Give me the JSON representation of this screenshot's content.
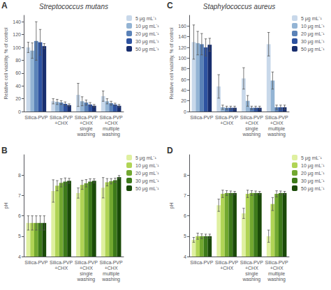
{
  "chart_data": [
    {
      "type": "bar",
      "title": "Streptococcus mutans",
      "ylabel": "Relative cell viability, % of control",
      "annotations": [
        "A"
      ],
      "categories": [
        "Silica-PVP",
        "Silica-PVP\n+CHX",
        "Silica-PVP\n+CHX\nsingle\nwashing",
        "Silica-PVP\n+CHX\nmultiple\nwashing"
      ],
      "ylim": [
        0,
        150
      ],
      "yticks": [
        0,
        20,
        40,
        60,
        80,
        100,
        120,
        140
      ],
      "grid": false,
      "legend": "upper right",
      "series": [
        {
          "name": "5 μg mL⁻¹",
          "color": "#c8d8ea",
          "values": [
            100,
            16,
            26,
            24
          ],
          "errors": [
            8,
            4,
            18,
            8
          ]
        },
        {
          "name": "10 μg mL⁻¹",
          "color": "#93b4d4",
          "values": [
            95,
            15,
            16,
            16
          ],
          "errors": [
            12,
            4,
            7,
            4
          ]
        },
        {
          "name": "20 μg mL⁻¹",
          "color": "#5a82b8",
          "values": [
            110,
            14,
            14,
            13
          ],
          "errors": [
            30,
            3,
            4,
            3
          ]
        },
        {
          "name": "30 μg mL⁻¹",
          "color": "#2d52a0",
          "values": [
            108,
            12,
            11,
            11
          ],
          "errors": [
            20,
            3,
            3,
            2
          ]
        },
        {
          "name": "50 μg mL⁻¹",
          "color": "#182e6e",
          "values": [
            102,
            10,
            9,
            9
          ],
          "errors": [
            4,
            2,
            2,
            2
          ]
        }
      ]
    },
    {
      "type": "bar",
      "title": "Staphylococcus aureus",
      "ylabel": "Relative cell viability, % of control",
      "annotations": [
        "C"
      ],
      "categories": [
        "Silica-PVP",
        "Silica-PVP\n+CHX",
        "Silica-PVP\n+CHX\nsingle\nwashing",
        "Silica-PVP\n+CHX\nmultiple\nwashing"
      ],
      "ylim": [
        0,
        180
      ],
      "yticks": [
        0,
        20,
        40,
        60,
        80,
        100,
        120,
        140,
        160
      ],
      "grid": false,
      "legend": "upper right",
      "series": [
        {
          "name": "5 μg mL⁻¹",
          "color": "#c8d8ea",
          "values": [
            130,
            47,
            62,
            126
          ],
          "errors": [
            32,
            22,
            20,
            22
          ]
        },
        {
          "name": "10 μg mL⁻¹",
          "color": "#93b4d4",
          "values": [
            128,
            8,
            20,
            58
          ],
          "errors": [
            22,
            4,
            10,
            16
          ]
        },
        {
          "name": "20 μg mL⁻¹",
          "color": "#5a82b8",
          "values": [
            126,
            7,
            7,
            8
          ],
          "errors": [
            20,
            3,
            3,
            4
          ]
        },
        {
          "name": "30 μg mL⁻¹",
          "color": "#2d52a0",
          "values": [
            120,
            7,
            7,
            8
          ],
          "errors": [
            16,
            3,
            3,
            4
          ]
        },
        {
          "name": "50 μg mL⁻¹",
          "color": "#182e6e",
          "values": [
            125,
            7,
            7,
            8
          ],
          "errors": [
            12,
            3,
            3,
            4
          ]
        }
      ]
    },
    {
      "type": "bar",
      "ylabel": "pH",
      "annotations": [
        "B"
      ],
      "categories": [
        "Silica-PVP",
        "Silica-PVP\n+CHX",
        "Silica-PVP\n+CHX\nsingle\nwashing",
        "Silica-PVP\n+CHX\nmultiple\nwashing"
      ],
      "ylim": [
        4,
        9
      ],
      "yticks": [
        4,
        5,
        6,
        7,
        8
      ],
      "grid": false,
      "legend": "upper right",
      "series": [
        {
          "name": "5 μg mL⁻¹",
          "color": "#dff0a0",
          "values": [
            5.65,
            7.22,
            7.12,
            7.38
          ],
          "errors": [
            0.35,
            0.55,
            0.25,
            0.5
          ]
        },
        {
          "name": "10 μg mL⁻¹",
          "color": "#b0d455",
          "values": [
            5.65,
            7.48,
            7.52,
            7.65
          ],
          "errors": [
            0.35,
            0.25,
            0.22,
            0.18
          ]
        },
        {
          "name": "20 μg mL⁻¹",
          "color": "#72a830",
          "values": [
            5.65,
            7.62,
            7.6,
            7.7
          ],
          "errors": [
            0.35,
            0.2,
            0.18,
            0.13
          ]
        },
        {
          "name": "30 μg mL⁻¹",
          "color": "#3d7a1a",
          "values": [
            5.65,
            7.68,
            7.68,
            7.75
          ],
          "errors": [
            0.35,
            0.18,
            0.14,
            0.1
          ]
        },
        {
          "name": "50 μg mL⁻¹",
          "color": "#1a4a08",
          "values": [
            5.65,
            7.72,
            7.72,
            7.9
          ],
          "errors": [
            0.35,
            0.12,
            0.1,
            0.08
          ]
        }
      ]
    },
    {
      "type": "bar",
      "ylabel": "pH",
      "annotations": [
        "D"
      ],
      "categories": [
        "Silica-PVP",
        "Silica-PVP\n+CHX",
        "Silica-PVP\n+CHX\nsingle\nwashing",
        "Silica-PVP\n+CHX\nmultiple\nwashing"
      ],
      "ylim": [
        4,
        9
      ],
      "yticks": [
        4,
        5,
        6,
        7,
        8
      ],
      "grid": false,
      "legend": "upper right",
      "series": [
        {
          "name": "5 μg mL⁻¹",
          "color": "#dff0a0",
          "values": [
            4.82,
            6.52,
            6.12,
            5.0
          ],
          "errors": [
            0.12,
            0.3,
            0.25,
            0.3
          ]
        },
        {
          "name": "10 μg mL⁻¹",
          "color": "#b0d455",
          "values": [
            5.0,
            7.08,
            7.08,
            6.58
          ],
          "errors": [
            0.15,
            0.18,
            0.18,
            0.32
          ]
        },
        {
          "name": "20 μg mL⁻¹",
          "color": "#72a830",
          "values": [
            5.0,
            7.12,
            7.12,
            7.08
          ],
          "errors": [
            0.12,
            0.12,
            0.12,
            0.15
          ]
        },
        {
          "name": "30 μg mL⁻¹",
          "color": "#3d7a1a",
          "values": [
            5.0,
            7.12,
            7.12,
            7.12
          ],
          "errors": [
            0.1,
            0.1,
            0.1,
            0.1
          ]
        },
        {
          "name": "50 μg mL⁻¹",
          "color": "#1a4a08",
          "values": [
            5.0,
            7.12,
            7.12,
            7.12
          ],
          "errors": [
            0.1,
            0.08,
            0.08,
            0.08
          ]
        }
      ]
    }
  ]
}
